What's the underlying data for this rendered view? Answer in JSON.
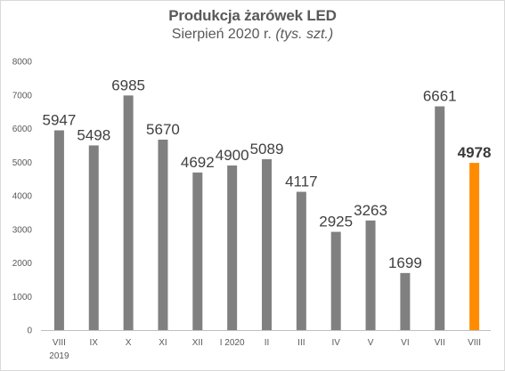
{
  "chart_data": {
    "type": "bar",
    "title": "Produkcja żarówek LED",
    "subtitle_main": "Sierpień 2020 r.",
    "subtitle_unit": "(tys. szt.)",
    "xlabel": "",
    "ylabel": "",
    "ylim": [
      0,
      8000
    ],
    "yticks": [
      0,
      1000,
      2000,
      3000,
      4000,
      5000,
      6000,
      7000,
      8000
    ],
    "grid": false,
    "categories": [
      "VIII\n2019",
      "IX",
      "X",
      "XI",
      "XII",
      "I 2020",
      "II",
      "III",
      "IV",
      "V",
      "VI",
      "VII",
      "VIII"
    ],
    "values": [
      5947,
      5498,
      6985,
      5670,
      4692,
      4900,
      5089,
      4117,
      2925,
      3263,
      1699,
      6661,
      4978
    ],
    "highlight_index": 12,
    "colors": {
      "bar": "#808080",
      "highlight": "#ff8c00",
      "axis": "#bfbfbf"
    }
  }
}
